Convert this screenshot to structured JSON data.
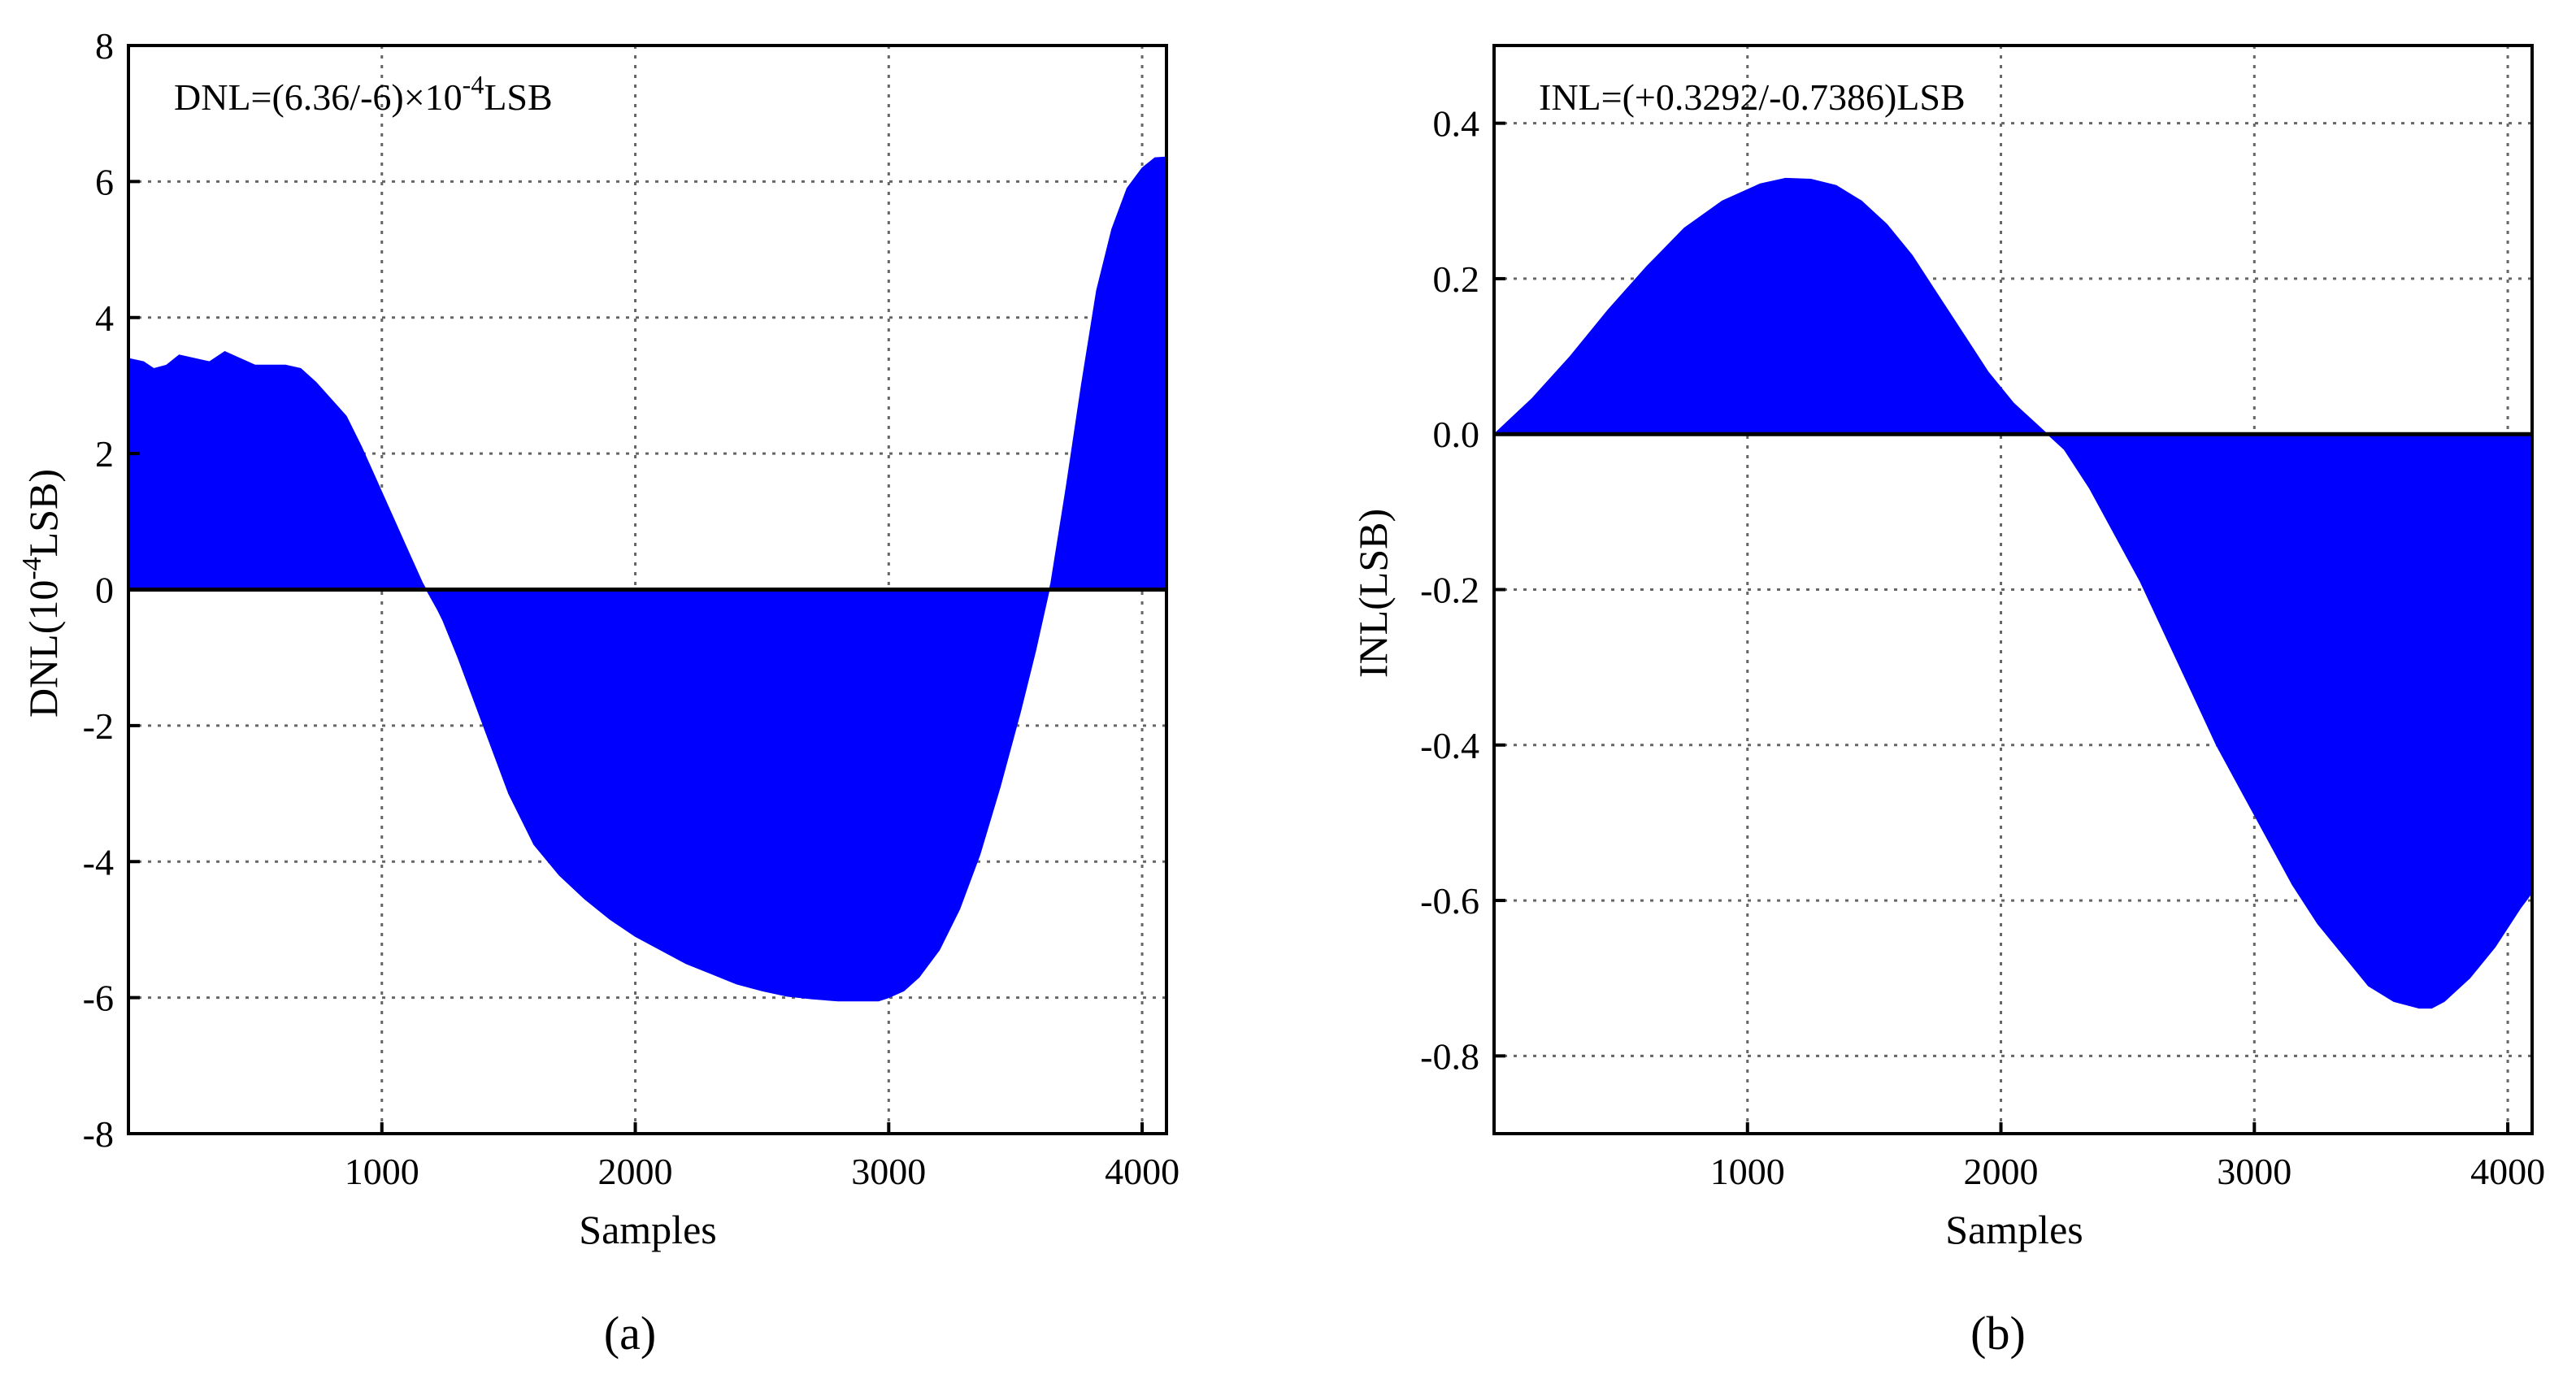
{
  "colors": {
    "fill": "#0000ff",
    "axis": "#000000",
    "grid": "#666666",
    "background": "#ffffff"
  },
  "chart_data": [
    {
      "type": "area",
      "caption": "(a)",
      "annotation": {
        "prefix": "DNL=(6.36/-6)×10",
        "sup": "-4",
        "suffix": "LSB"
      },
      "xlabel": "Samples",
      "ylabel": {
        "prefix": "DNL(10",
        "sup": "-4",
        "suffix": "LSB)"
      },
      "xlim": [
        0,
        4096
      ],
      "ylim": [
        -8,
        8
      ],
      "xticks": [
        1000,
        2000,
        3000,
        4000
      ],
      "yticks": [
        -8,
        -6,
        -4,
        -2,
        0,
        2,
        4,
        6,
        8
      ],
      "grid": true,
      "x": [
        0,
        60,
        100,
        150,
        200,
        260,
        320,
        380,
        440,
        500,
        560,
        620,
        680,
        740,
        800,
        860,
        920,
        980,
        1040,
        1100,
        1160,
        1220,
        1240,
        1300,
        1400,
        1500,
        1600,
        1700,
        1800,
        1900,
        2000,
        2100,
        2200,
        2300,
        2400,
        2500,
        2600,
        2700,
        2800,
        2900,
        2960,
        3000,
        3060,
        3120,
        3200,
        3280,
        3360,
        3440,
        3520,
        3580,
        3640,
        3700,
        3760,
        3820,
        3880,
        3940,
        4000,
        4050,
        4096
      ],
      "values": [
        3.4,
        3.35,
        3.25,
        3.3,
        3.45,
        3.4,
        3.35,
        3.5,
        3.4,
        3.3,
        3.3,
        3.3,
        3.25,
        3.05,
        2.8,
        2.55,
        2.1,
        1.6,
        1.1,
        0.6,
        0.1,
        -0.3,
        -0.45,
        -1.0,
        -2.0,
        -3.0,
        -3.75,
        -4.2,
        -4.55,
        -4.85,
        -5.1,
        -5.3,
        -5.5,
        -5.65,
        -5.8,
        -5.9,
        -5.98,
        -6.02,
        -6.05,
        -6.05,
        -6.05,
        -6.0,
        -5.9,
        -5.7,
        -5.3,
        -4.7,
        -3.9,
        -2.9,
        -1.8,
        -0.9,
        0.1,
        1.5,
        3.0,
        4.4,
        5.3,
        5.9,
        6.2,
        6.35,
        6.36
      ]
    },
    {
      "type": "area",
      "caption": "(b)",
      "annotation": {
        "text": "INL=(+0.3292/-0.7386)LSB"
      },
      "xlabel": "Samples",
      "ylabel": {
        "text": "INL(LSB)"
      },
      "xlim": [
        0,
        4096
      ],
      "ylim": [
        -0.9,
        0.5
      ],
      "xticks": [
        1000,
        2000,
        3000,
        4000
      ],
      "yticks": [
        -0.8,
        -0.6,
        -0.4,
        -0.2,
        0.0,
        0.2,
        0.4
      ],
      "ytick_labels": [
        "-0.8",
        "-0.6",
        "-0.4",
        "-0.2",
        "0.0",
        "0.2",
        "0.4"
      ],
      "grid": true,
      "x": [
        0,
        150,
        300,
        450,
        600,
        750,
        900,
        1050,
        1150,
        1250,
        1350,
        1450,
        1550,
        1650,
        1750,
        1850,
        1950,
        2050,
        2150,
        2250,
        2350,
        2450,
        2550,
        2650,
        2750,
        2850,
        2950,
        3050,
        3150,
        3250,
        3350,
        3450,
        3550,
        3650,
        3700,
        3750,
        3850,
        3950,
        4050,
        4096
      ],
      "values": [
        0.0,
        0.046,
        0.1,
        0.16,
        0.215,
        0.265,
        0.3,
        0.322,
        0.3292,
        0.328,
        0.32,
        0.3,
        0.27,
        0.23,
        0.18,
        0.13,
        0.08,
        0.04,
        0.01,
        -0.02,
        -0.07,
        -0.13,
        -0.19,
        -0.26,
        -0.33,
        -0.4,
        -0.46,
        -0.52,
        -0.58,
        -0.63,
        -0.67,
        -0.71,
        -0.73,
        -0.7386,
        -0.7386,
        -0.73,
        -0.7,
        -0.66,
        -0.61,
        -0.59
      ]
    }
  ]
}
